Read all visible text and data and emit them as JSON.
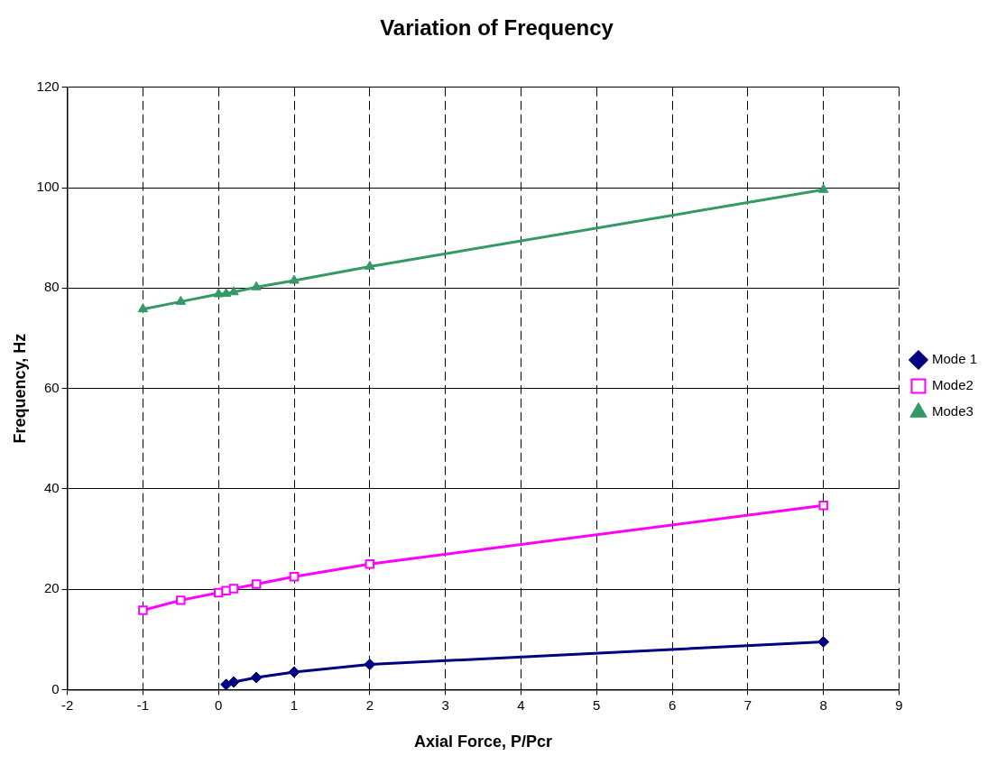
{
  "chart_data": {
    "type": "line",
    "title": "Variation of Frequency",
    "xlabel": "Axial Force, P/Pcr",
    "ylabel": "Frequency, Hz",
    "xlim": [
      -2,
      9
    ],
    "xticks": [
      -2,
      -1,
      0,
      1,
      2,
      3,
      4,
      5,
      6,
      7,
      8,
      9
    ],
    "ylim": [
      0,
      120
    ],
    "yticks": [
      0,
      20,
      40,
      60,
      80,
      100,
      120
    ],
    "grid": true,
    "legend": "right",
    "series": [
      {
        "name": "Mode 1",
        "color": "#000080",
        "marker": "diamond",
        "x": [
          0.1,
          0.2,
          0.5,
          1,
          2,
          8
        ],
        "values": [
          1.0,
          1.5,
          2.4,
          3.5,
          5.0,
          9.5
        ]
      },
      {
        "name": "Mode2",
        "color": "#ff00ff",
        "marker": "square",
        "x": [
          -1,
          -0.5,
          0,
          0.1,
          0.2,
          0.5,
          1,
          2,
          8
        ],
        "values": [
          15.8,
          17.8,
          19.3,
          19.7,
          20.1,
          21.0,
          22.5,
          25.0,
          36.7
        ]
      },
      {
        "name": "Mode3",
        "color": "#339966",
        "marker": "triangle",
        "x": [
          -1,
          -0.5,
          0,
          0.1,
          0.2,
          0.5,
          1,
          2,
          8
        ],
        "values": [
          75.8,
          77.3,
          78.8,
          78.9,
          79.2,
          80.2,
          81.5,
          84.3,
          99.6
        ]
      }
    ]
  }
}
